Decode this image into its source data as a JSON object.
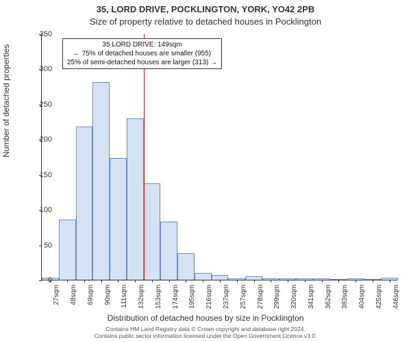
{
  "titles": {
    "main": "35, LORD DRIVE, POCKLINGTON, YORK, YO42 2PB",
    "sub": "Size of property relative to detached houses in Pocklington"
  },
  "axes": {
    "ylabel": "Number of detached properties",
    "xlabel": "Distribution of detached houses by size in Pocklington",
    "ylim": [
      0,
      350
    ],
    "ytick_step": 50,
    "xtick_labels": [
      "27sqm",
      "48sqm",
      "69sqm",
      "90sqm",
      "111sqm",
      "132sqm",
      "153sqm",
      "174sqm",
      "195sqm",
      "216sqm",
      "237sqm",
      "257sqm",
      "278sqm",
      "299sqm",
      "320sqm",
      "341sqm",
      "362sqm",
      "383sqm",
      "404sqm",
      "425sqm",
      "446sqm"
    ]
  },
  "chart": {
    "type": "bar",
    "bar_fill": "#d4e2f4",
    "bar_stroke": "#6a8ebf",
    "bar_width_ratio": 1.0,
    "values": [
      3,
      86,
      218,
      281,
      173,
      229,
      137,
      83,
      38,
      10,
      7,
      2,
      5,
      2,
      2,
      2,
      2,
      0,
      2,
      0,
      3
    ],
    "reference_index": 6,
    "reference_color": "#d92626",
    "background_color": "#ffffff"
  },
  "annotation": {
    "line1": "35 LORD DRIVE: 149sqm",
    "line2": "← 75% of detached houses are smaller (955)",
    "line3": "25% of semi-detached houses are larger (313) →"
  },
  "footer": {
    "line1": "Contains HM Land Registry data © Crown copyright and database right 2024.",
    "line2": "Contains public sector information licensed under the Open Government Licence v3.0."
  }
}
